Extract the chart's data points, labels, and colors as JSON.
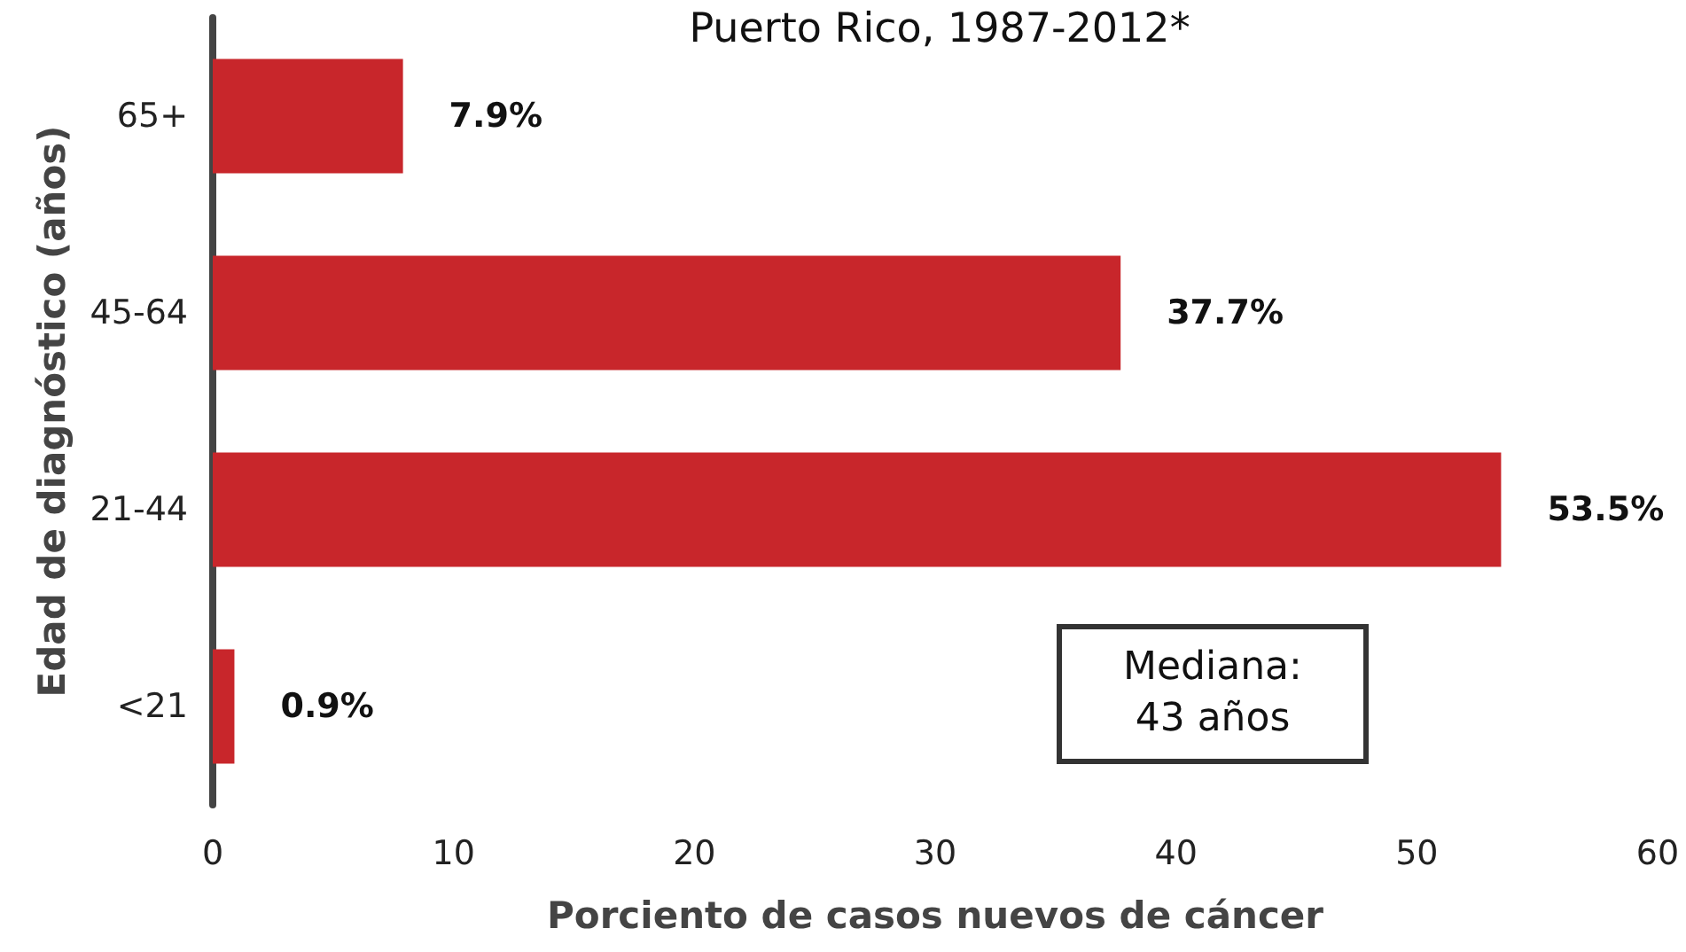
{
  "chart_data": {
    "type": "bar",
    "orientation": "horizontal",
    "title": "Puerto Rico, 1987-2012*",
    "xlabel": "Porciento de casos nuevos de cáncer",
    "ylabel": "Edad de diagnóstico (años)",
    "categories": [
      "65+",
      "45-64",
      "21-44",
      "<21"
    ],
    "values": [
      7.9,
      37.7,
      53.5,
      0.9
    ],
    "value_labels": [
      "7.9%",
      "37.7%",
      "53.5%",
      "0.9%"
    ],
    "color": "#c8262b",
    "xlim": [
      0,
      60
    ],
    "xticks": [
      0,
      10,
      20,
      30,
      40,
      50,
      60
    ],
    "grid": false,
    "annotations": [
      "Mediana:\n43 años"
    ]
  }
}
